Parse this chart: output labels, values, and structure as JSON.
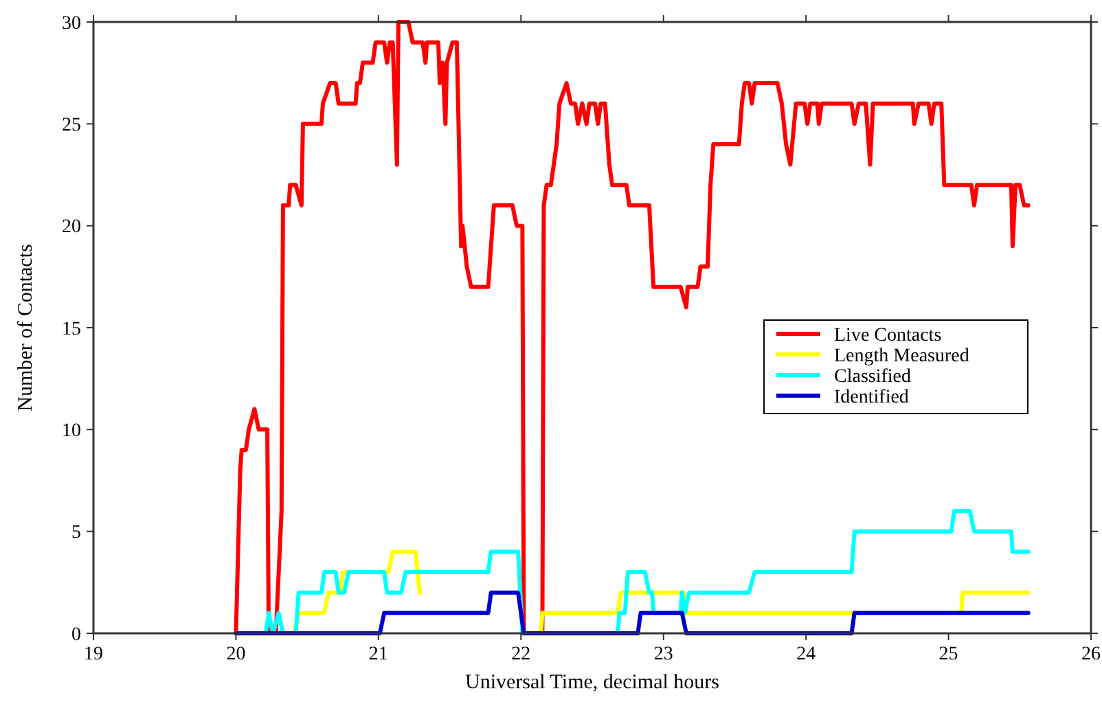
{
  "chart_data": {
    "type": "line",
    "xlabel": "Universal Time, decimal hours",
    "ylabel": "Number of Contacts",
    "xlim": [
      19,
      26
    ],
    "ylim": [
      0,
      30
    ],
    "xticks": [
      19,
      20,
      21,
      22,
      23,
      24,
      25,
      26
    ],
    "yticks": [
      0,
      5,
      10,
      15,
      20,
      25,
      30
    ],
    "grid": false,
    "legend": "right",
    "marker": "none",
    "line_style": "solid",
    "series": [
      {
        "name": "Live Contacts",
        "color": "#ff0000",
        "x": [
          20.0,
          20.03,
          20.04,
          20.07,
          20.09,
          20.13,
          20.16,
          20.22,
          20.23,
          20.28,
          20.32,
          20.33,
          20.37,
          20.38,
          20.42,
          20.46,
          20.47,
          20.6,
          20.61,
          20.66,
          20.7,
          20.72,
          20.84,
          20.85,
          20.87,
          20.89,
          20.96,
          20.98,
          21.04,
          21.06,
          21.08,
          21.1,
          21.13,
          21.14,
          21.21,
          21.24,
          21.31,
          21.33,
          21.34,
          21.42,
          21.43,
          21.45,
          21.47,
          21.48,
          21.52,
          21.55,
          21.58,
          21.59,
          21.62,
          21.65,
          21.77,
          21.81,
          21.94,
          21.97,
          22.01,
          22.02,
          22.15,
          22.16,
          22.18,
          22.21,
          22.25,
          22.26,
          22.27,
          22.32,
          22.35,
          22.38,
          22.4,
          22.43,
          22.46,
          22.48,
          22.52,
          22.54,
          22.56,
          22.59,
          22.62,
          22.64,
          22.74,
          22.76,
          22.9,
          22.93,
          23.12,
          23.16,
          23.17,
          23.24,
          23.26,
          23.31,
          23.33,
          23.35,
          23.53,
          23.55,
          23.57,
          23.6,
          23.62,
          23.64,
          23.8,
          23.83,
          23.86,
          23.89,
          23.93,
          23.99,
          24.01,
          24.03,
          24.08,
          24.09,
          24.11,
          24.32,
          24.34,
          24.37,
          24.42,
          24.45,
          24.47,
          24.75,
          24.76,
          24.79,
          24.86,
          24.88,
          24.9,
          24.95,
          24.97,
          25.16,
          25.18,
          25.2,
          25.44,
          25.45,
          25.47,
          25.5,
          25.53,
          25.56
        ],
        "values": [
          0,
          8,
          9,
          9,
          10,
          11,
          10,
          10,
          0,
          0,
          6,
          21,
          21,
          22,
          22,
          21,
          25,
          25,
          26,
          27,
          27,
          26,
          26,
          27,
          27,
          28,
          28,
          29,
          29,
          28,
          29,
          29,
          23,
          30,
          30,
          29,
          29,
          28,
          29,
          29,
          27,
          28,
          25,
          28,
          29,
          29,
          19,
          20,
          18,
          17,
          17,
          21,
          21,
          20,
          20,
          0,
          0,
          21,
          22,
          22,
          24,
          25,
          26,
          27,
          26,
          26,
          25,
          26,
          25,
          26,
          26,
          25,
          26,
          26,
          23,
          22,
          22,
          21,
          21,
          17,
          17,
          16,
          17,
          17,
          18,
          18,
          22,
          24,
          24,
          26,
          27,
          27,
          26,
          27,
          27,
          26,
          24,
          23,
          26,
          26,
          25,
          26,
          26,
          25,
          26,
          26,
          25,
          26,
          26,
          23,
          26,
          26,
          25,
          26,
          26,
          25,
          26,
          26,
          22,
          22,
          21,
          22,
          22,
          19,
          22,
          22,
          21,
          21
        ]
      },
      {
        "name": "Length Measured",
        "color": "#ffff00",
        "x": [
          20.0,
          20.41,
          20.44,
          20.62,
          20.65,
          20.73,
          20.75,
          21.07,
          21.1,
          21.26,
          21.29,
          21.99,
          22.01,
          22.14,
          22.15,
          22.68,
          22.7,
          23.14,
          23.16,
          25.09,
          25.1,
          25.56
        ],
        "values": [
          0,
          0,
          1,
          1,
          2,
          2,
          3,
          3,
          4,
          4,
          2,
          null,
          0,
          0,
          1,
          1,
          2,
          2,
          1,
          1,
          2,
          2
        ]
      },
      {
        "name": "Classified",
        "color": "#00ffff",
        "x": [
          20.0,
          20.21,
          20.23,
          20.26,
          20.3,
          20.33,
          20.42,
          20.44,
          20.6,
          20.62,
          20.7,
          20.72,
          20.76,
          20.79,
          21.04,
          21.06,
          21.16,
          21.19,
          21.77,
          21.79,
          21.98,
          22.01,
          22.68,
          22.69,
          22.73,
          22.75,
          22.87,
          22.9,
          22.92,
          22.93,
          23.12,
          23.13,
          23.15,
          23.18,
          23.6,
          23.64,
          24.32,
          24.34,
          25.02,
          25.04,
          25.15,
          25.18,
          25.44,
          25.45,
          25.56
        ],
        "values": [
          0,
          0,
          1,
          0,
          1,
          0,
          0,
          2,
          2,
          3,
          3,
          2,
          2,
          3,
          3,
          2,
          2,
          3,
          3,
          4,
          4,
          0,
          0,
          1,
          1,
          3,
          3,
          2,
          2,
          1,
          1,
          2,
          1,
          2,
          2,
          3,
          3,
          5,
          5,
          6,
          6,
          5,
          5,
          4,
          4
        ]
      },
      {
        "name": "Identified",
        "color": "#0000cc",
        "x": [
          20.0,
          21.01,
          21.04,
          21.77,
          21.79,
          21.98,
          22.02,
          22.82,
          22.84,
          23.13,
          23.16,
          24.32,
          24.34,
          25.56
        ],
        "values": [
          0,
          0,
          1,
          1,
          2,
          2,
          0,
          0,
          1,
          1,
          0,
          0,
          1,
          1
        ]
      }
    ]
  }
}
